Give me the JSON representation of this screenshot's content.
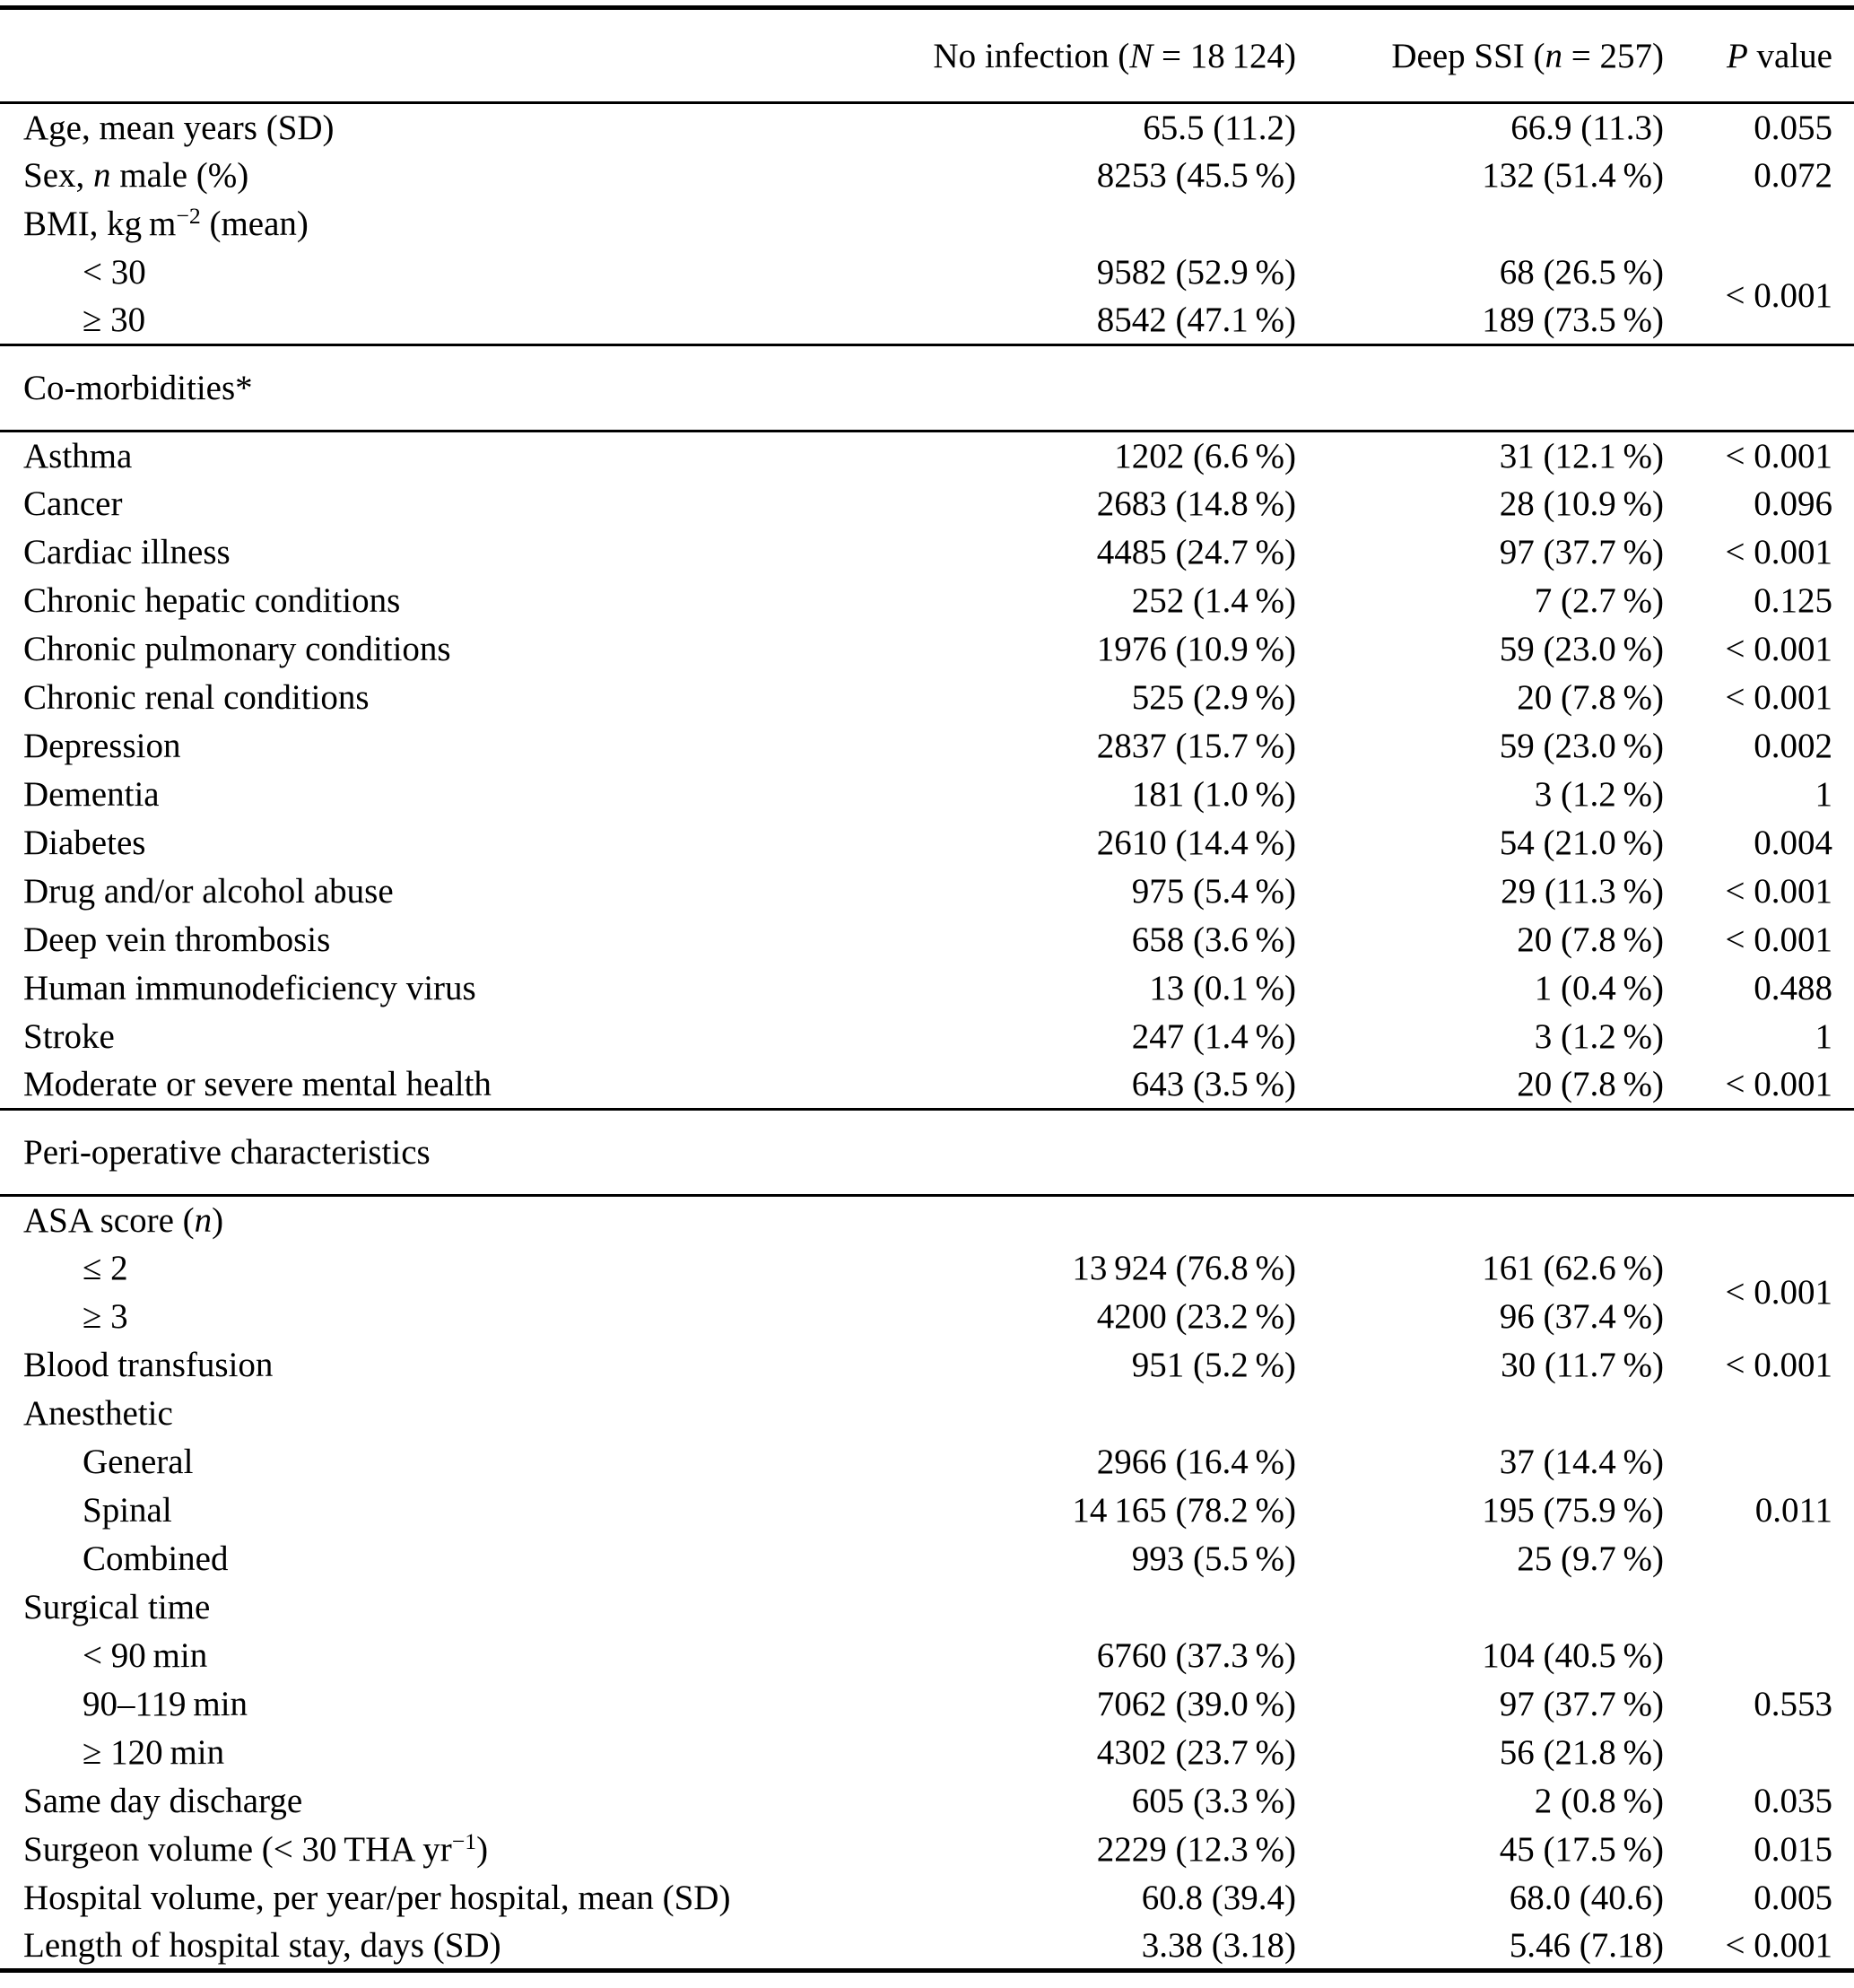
{
  "colors": {
    "text": "#000000",
    "background": "#ffffff",
    "rule": "#000000"
  },
  "header": {
    "no_infection": {
      "pre": "No infection (",
      "var": "N",
      "post": " = 18 124)"
    },
    "deep_ssi": {
      "pre": "Deep SSI (",
      "var": "n",
      "post": " = 257)"
    },
    "p_value": {
      "var": "P",
      "post": " value"
    }
  },
  "table": {
    "rows": [
      {
        "label": [
          [
            "t",
            "Age, mean years (SD)"
          ]
        ],
        "v1": "65.5 (11.2)",
        "v2": "66.9 (11.3)",
        "p": "0.055"
      },
      {
        "label": [
          [
            "t",
            "Sex, "
          ],
          [
            "i",
            "n"
          ],
          [
            "t",
            " male (%)"
          ]
        ],
        "v1": "8253 (45.5 %)",
        "v2": "132 (51.4 %)",
        "p": "0.072"
      },
      {
        "label": [
          [
            "t",
            "BMI, kg m"
          ],
          [
            "sup",
            "−2"
          ],
          [
            "t",
            " (mean)"
          ]
        ],
        "v1": "",
        "v2": "",
        "p": ""
      },
      {
        "indent": true,
        "label": [
          [
            "t",
            "< 30"
          ]
        ],
        "v1": "9582 (52.9 %)",
        "v2": "68 (26.5 %)",
        "p": "< 0.001",
        "prowspan": 2
      },
      {
        "indent": true,
        "label": [
          [
            "t",
            "≥ 30"
          ]
        ],
        "v1": "8542 (47.1 %)",
        "v2": "189 (73.5 %)",
        "pskip": true
      },
      {
        "section": true,
        "label": "Co-morbidities*"
      },
      {
        "label": [
          [
            "t",
            "Asthma"
          ]
        ],
        "v1": "1202 (6.6 %)",
        "v2": "31 (12.1 %)",
        "p": "< 0.001"
      },
      {
        "label": [
          [
            "t",
            "Cancer"
          ]
        ],
        "v1": "2683 (14.8 %)",
        "v2": "28 (10.9 %)",
        "p": "0.096"
      },
      {
        "label": [
          [
            "t",
            "Cardiac illness"
          ]
        ],
        "v1": "4485 (24.7 %)",
        "v2": "97 (37.7 %)",
        "p": "< 0.001"
      },
      {
        "label": [
          [
            "t",
            "Chronic hepatic conditions"
          ]
        ],
        "v1": "252 (1.4 %)",
        "v2": "7 (2.7 %)",
        "p": "0.125"
      },
      {
        "label": [
          [
            "t",
            "Chronic pulmonary conditions"
          ]
        ],
        "v1": "1976 (10.9 %)",
        "v2": "59 (23.0 %)",
        "p": "< 0.001"
      },
      {
        "label": [
          [
            "t",
            "Chronic renal conditions"
          ]
        ],
        "v1": "525 (2.9 %)",
        "v2": "20 (7.8 %)",
        "p": "< 0.001"
      },
      {
        "label": [
          [
            "t",
            "Depression"
          ]
        ],
        "v1": "2837 (15.7 %)",
        "v2": "59 (23.0 %)",
        "p": "0.002"
      },
      {
        "label": [
          [
            "t",
            "Dementia"
          ]
        ],
        "v1": "181 (1.0 %)",
        "v2": "3 (1.2 %)",
        "p": "1"
      },
      {
        "label": [
          [
            "t",
            "Diabetes"
          ]
        ],
        "v1": "2610 (14.4 %)",
        "v2": "54 (21.0 %)",
        "p": "0.004"
      },
      {
        "label": [
          [
            "t",
            "Drug and/or alcohol abuse"
          ]
        ],
        "v1": "975 (5.4 %)",
        "v2": "29 (11.3 %)",
        "p": "< 0.001"
      },
      {
        "label": [
          [
            "t",
            "Deep vein thrombosis"
          ]
        ],
        "v1": "658 (3.6 %)",
        "v2": "20 (7.8 %)",
        "p": "< 0.001"
      },
      {
        "label": [
          [
            "t",
            "Human immunodeficiency virus"
          ]
        ],
        "v1": "13 (0.1 %)",
        "v2": "1 (0.4 %)",
        "p": "0.488"
      },
      {
        "label": [
          [
            "t",
            "Stroke"
          ]
        ],
        "v1": "247 (1.4 %)",
        "v2": "3 (1.2 %)",
        "p": "1"
      },
      {
        "label": [
          [
            "t",
            "Moderate or severe mental health"
          ]
        ],
        "v1": "643 (3.5 %)",
        "v2": "20 (7.8 %)",
        "p": "< 0.001"
      },
      {
        "section": true,
        "label": "Peri-operative characteristics"
      },
      {
        "label": [
          [
            "t",
            "ASA score ("
          ],
          [
            "i",
            "n"
          ],
          [
            "t",
            ")"
          ]
        ],
        "v1": "",
        "v2": "",
        "p": ""
      },
      {
        "indent": true,
        "label": [
          [
            "t",
            "≤ 2"
          ]
        ],
        "v1": "13 924 (76.8 %)",
        "v2": "161 (62.6 %)",
        "p": "< 0.001",
        "prowspan": 2
      },
      {
        "indent": true,
        "label": [
          [
            "t",
            "≥ 3"
          ]
        ],
        "v1": "4200 (23.2 %)",
        "v2": "96 (37.4 %)",
        "pskip": true
      },
      {
        "label": [
          [
            "t",
            "Blood transfusion"
          ]
        ],
        "v1": "951 (5.2 %)",
        "v2": "30 (11.7 %)",
        "p": "< 0.001"
      },
      {
        "label": [
          [
            "t",
            "Anesthetic"
          ]
        ],
        "v1": "",
        "v2": "",
        "p": ""
      },
      {
        "indent": true,
        "label": [
          [
            "t",
            "General"
          ]
        ],
        "v1": "2966 (16.4 %)",
        "v2": "37 (14.4 %)",
        "p": "0.011",
        "prowspan": 3
      },
      {
        "indent": true,
        "label": [
          [
            "t",
            "Spinal"
          ]
        ],
        "v1": "14 165 (78.2 %)",
        "v2": "195 (75.9 %)",
        "pskip": true
      },
      {
        "indent": true,
        "label": [
          [
            "t",
            "Combined"
          ]
        ],
        "v1": "993 (5.5 %)",
        "v2": "25 (9.7 %)",
        "pskip": true
      },
      {
        "label": [
          [
            "t",
            "Surgical time"
          ]
        ],
        "v1": "",
        "v2": "",
        "p": ""
      },
      {
        "indent": true,
        "label": [
          [
            "t",
            "< 90 min"
          ]
        ],
        "v1": "6760 (37.3 %)",
        "v2": "104 (40.5 %)",
        "p": "0.553",
        "prowspan": 3
      },
      {
        "indent": true,
        "label": [
          [
            "t",
            "90–119 min"
          ]
        ],
        "v1": "7062 (39.0 %)",
        "v2": "97 (37.7 %)",
        "pskip": true
      },
      {
        "indent": true,
        "label": [
          [
            "t",
            "≥ 120 min"
          ]
        ],
        "v1": "4302 (23.7 %)",
        "v2": "56 (21.8 %)",
        "pskip": true
      },
      {
        "label": [
          [
            "t",
            "Same day discharge"
          ]
        ],
        "v1": "605 (3.3 %)",
        "v2": "2 (0.8 %)",
        "p": "0.035"
      },
      {
        "label": [
          [
            "t",
            "Surgeon volume (< 30 THA yr"
          ],
          [
            "sup",
            "−1"
          ],
          [
            "t",
            ")"
          ]
        ],
        "v1": "2229 (12.3 %)",
        "v2": "45 (17.5 %)",
        "p": "0.015"
      },
      {
        "label": [
          [
            "t",
            "Hospital volume, per year/per hospital, mean (SD)"
          ]
        ],
        "v1": "60.8 (39.4)",
        "v2": "68.0 (40.6)",
        "p": "0.005"
      },
      {
        "label": [
          [
            "t",
            "Length of hospital stay, days (SD)"
          ]
        ],
        "v1": "3.38 (3.18)",
        "v2": "5.46 (7.18)",
        "p": "< 0.001"
      }
    ]
  }
}
